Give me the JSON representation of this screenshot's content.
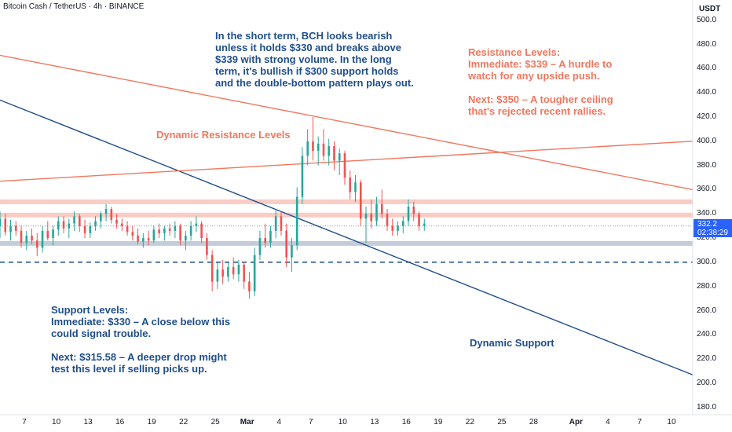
{
  "header": {
    "symbol_title": "Bitcoin Cash / TetherUS · 4h · BINANCE",
    "price_unit": "USDT"
  },
  "price_tag": {
    "price": "332.2",
    "countdown": "02:38:29"
  },
  "colors": {
    "bull": "#26a69a",
    "bear": "#ef5350",
    "resistance_band": "#f8c3bb",
    "support_band": "#b8c4d2",
    "support_line": "#1f4e8c",
    "resistance_line": "#f0785f",
    "annotation_blue": "#1f4e8c",
    "annotation_orange": "#f0785f"
  },
  "annotations": {
    "outlook": "In the short term, BCH looks bearish\nunless it holds $330 and breaks above\n$339 with strong volume. In the long\nterm, it's bullish if $300 support holds\nand the double-bottom pattern plays out.",
    "resistance": "Resistance Levels:\nImmediate: $339 – A hurdle to\nwatch for any upside push.\n\nNext: $350 – A tougher ceiling\nthat's rejected recent rallies.",
    "dynamic_resistance": "Dynamic Resistance Levels",
    "support": "Support Levels:\nImmediate: $330 – A close below this\ncould signal trouble.\n\nNext: $315.58 – A deeper drop might\ntest this level if selling picks up.",
    "dynamic_support": "Dynamic Support"
  },
  "chart_data": {
    "type": "candlestick",
    "title": "Bitcoin Cash / TetherUS · 4h · BINANCE",
    "xlabel": "",
    "ylabel": "",
    "unit": "USDT",
    "ylim": [
      175,
      520
    ],
    "y_ticks": [
      "180.0",
      "200.0",
      "220.0",
      "240.0",
      "260.0",
      "280.0",
      "300.0",
      "320.0",
      "340.0",
      "360.0",
      "380.0",
      "400.0",
      "420.0",
      "440.0",
      "460.0",
      "480.0",
      "500.0"
    ],
    "x_ticks": [
      "7",
      "10",
      "13",
      "16",
      "19",
      "22",
      "25",
      "Mar",
      "4",
      "7",
      "10",
      "13",
      "16",
      "19",
      "22",
      "25",
      "28",
      "Apr",
      "4",
      "7",
      "10"
    ],
    "x_tick_positions": [
      2.3,
      5.3,
      8.3,
      11.3,
      14.3,
      17.3,
      20.3,
      23.3,
      26.3,
      29.3,
      32.3,
      35.3,
      38.3,
      41.3,
      44.3,
      47.3,
      50.3,
      54.3,
      57.3,
      60.3,
      63.3
    ],
    "x_range": [
      0,
      65.3
    ],
    "last_price": 332.2,
    "horizontal_levels": [
      {
        "price": 350,
        "style": "band",
        "role": "resistance"
      },
      {
        "price": 339,
        "style": "band",
        "role": "resistance"
      },
      {
        "price": 330,
        "style": "dotted",
        "role": "current"
      },
      {
        "price": 315.58,
        "style": "band",
        "role": "support"
      },
      {
        "price": 300,
        "style": "dashed",
        "role": "support"
      }
    ],
    "trendlines": [
      {
        "role": "support",
        "points": [
          [
            0,
            434
          ],
          [
            65.3,
            207
          ]
        ]
      },
      {
        "role": "resistance",
        "points": [
          [
            0,
            471
          ],
          [
            65.3,
            360
          ]
        ]
      },
      {
        "role": "resistance",
        "points": [
          [
            0,
            367
          ],
          [
            65.3,
            400
          ]
        ]
      }
    ],
    "candles": [
      {
        "t": 0.0,
        "o": 330,
        "h": 342,
        "l": 320,
        "c": 336
      },
      {
        "t": 0.5,
        "o": 336,
        "h": 340,
        "l": 322,
        "c": 325
      },
      {
        "t": 1.0,
        "o": 325,
        "h": 335,
        "l": 318,
        "c": 330
      },
      {
        "t": 1.5,
        "o": 330,
        "h": 334,
        "l": 322,
        "c": 326
      },
      {
        "t": 2.0,
        "o": 326,
        "h": 330,
        "l": 312,
        "c": 316
      },
      {
        "t": 2.5,
        "o": 316,
        "h": 326,
        "l": 310,
        "c": 322
      },
      {
        "t": 3.0,
        "o": 322,
        "h": 328,
        "l": 315,
        "c": 318
      },
      {
        "t": 3.5,
        "o": 318,
        "h": 324,
        "l": 305,
        "c": 312
      },
      {
        "t": 4.0,
        "o": 312,
        "h": 330,
        "l": 308,
        "c": 326
      },
      {
        "t": 4.5,
        "o": 326,
        "h": 334,
        "l": 318,
        "c": 320
      },
      {
        "t": 5.0,
        "o": 320,
        "h": 330,
        "l": 314,
        "c": 327
      },
      {
        "t": 5.5,
        "o": 327,
        "h": 338,
        "l": 322,
        "c": 334
      },
      {
        "t": 6.0,
        "o": 334,
        "h": 338,
        "l": 324,
        "c": 328
      },
      {
        "t": 6.5,
        "o": 328,
        "h": 336,
        "l": 320,
        "c": 332
      },
      {
        "t": 7.0,
        "o": 332,
        "h": 342,
        "l": 326,
        "c": 338
      },
      {
        "t": 7.5,
        "o": 338,
        "h": 340,
        "l": 325,
        "c": 330
      },
      {
        "t": 8.0,
        "o": 330,
        "h": 335,
        "l": 320,
        "c": 324
      },
      {
        "t": 8.5,
        "o": 324,
        "h": 333,
        "l": 320,
        "c": 330
      },
      {
        "t": 9.0,
        "o": 330,
        "h": 338,
        "l": 326,
        "c": 334
      },
      {
        "t": 9.5,
        "o": 334,
        "h": 342,
        "l": 328,
        "c": 340
      },
      {
        "t": 10.0,
        "o": 340,
        "h": 348,
        "l": 334,
        "c": 344
      },
      {
        "t": 10.5,
        "o": 344,
        "h": 346,
        "l": 332,
        "c": 335
      },
      {
        "t": 11.0,
        "o": 335,
        "h": 340,
        "l": 328,
        "c": 332
      },
      {
        "t": 11.5,
        "o": 332,
        "h": 336,
        "l": 326,
        "c": 330
      },
      {
        "t": 12.0,
        "o": 330,
        "h": 334,
        "l": 322,
        "c": 325
      },
      {
        "t": 12.5,
        "o": 325,
        "h": 330,
        "l": 318,
        "c": 322
      },
      {
        "t": 13.0,
        "o": 322,
        "h": 328,
        "l": 315,
        "c": 317
      },
      {
        "t": 13.5,
        "o": 317,
        "h": 324,
        "l": 312,
        "c": 320
      },
      {
        "t": 14.0,
        "o": 320,
        "h": 326,
        "l": 314,
        "c": 318
      },
      {
        "t": 14.5,
        "o": 318,
        "h": 330,
        "l": 316,
        "c": 327
      },
      {
        "t": 15.0,
        "o": 327,
        "h": 332,
        "l": 320,
        "c": 324
      },
      {
        "t": 15.5,
        "o": 324,
        "h": 330,
        "l": 318,
        "c": 328
      },
      {
        "t": 16.0,
        "o": 328,
        "h": 332,
        "l": 322,
        "c": 326
      },
      {
        "t": 16.5,
        "o": 326,
        "h": 334,
        "l": 320,
        "c": 330
      },
      {
        "t": 17.0,
        "o": 330,
        "h": 332,
        "l": 314,
        "c": 318
      },
      {
        "t": 17.5,
        "o": 318,
        "h": 326,
        "l": 310,
        "c": 322
      },
      {
        "t": 18.0,
        "o": 322,
        "h": 334,
        "l": 318,
        "c": 330
      },
      {
        "t": 18.5,
        "o": 330,
        "h": 338,
        "l": 325,
        "c": 332
      },
      {
        "t": 19.0,
        "o": 332,
        "h": 334,
        "l": 316,
        "c": 320
      },
      {
        "t": 19.5,
        "o": 320,
        "h": 324,
        "l": 302,
        "c": 306
      },
      {
        "t": 20.0,
        "o": 306,
        "h": 310,
        "l": 276,
        "c": 284
      },
      {
        "t": 20.5,
        "o": 284,
        "h": 300,
        "l": 278,
        "c": 294
      },
      {
        "t": 21.0,
        "o": 294,
        "h": 302,
        "l": 282,
        "c": 288
      },
      {
        "t": 21.5,
        "o": 288,
        "h": 300,
        "l": 284,
        "c": 296
      },
      {
        "t": 22.0,
        "o": 296,
        "h": 304,
        "l": 286,
        "c": 290
      },
      {
        "t": 22.5,
        "o": 290,
        "h": 302,
        "l": 284,
        "c": 298
      },
      {
        "t": 23.0,
        "o": 298,
        "h": 300,
        "l": 278,
        "c": 284
      },
      {
        "t": 23.5,
        "o": 284,
        "h": 292,
        "l": 270,
        "c": 276
      },
      {
        "t": 24.0,
        "o": 276,
        "h": 312,
        "l": 272,
        "c": 306
      },
      {
        "t": 24.5,
        "o": 306,
        "h": 326,
        "l": 302,
        "c": 320
      },
      {
        "t": 25.0,
        "o": 320,
        "h": 332,
        "l": 312,
        "c": 316
      },
      {
        "t": 25.5,
        "o": 316,
        "h": 330,
        "l": 312,
        "c": 326
      },
      {
        "t": 26.0,
        "o": 326,
        "h": 344,
        "l": 320,
        "c": 338
      },
      {
        "t": 26.5,
        "o": 338,
        "h": 342,
        "l": 322,
        "c": 326
      },
      {
        "t": 27.0,
        "o": 326,
        "h": 332,
        "l": 296,
        "c": 304
      },
      {
        "t": 27.5,
        "o": 304,
        "h": 320,
        "l": 292,
        "c": 314
      },
      {
        "t": 28.0,
        "o": 314,
        "h": 362,
        "l": 310,
        "c": 354
      },
      {
        "t": 28.5,
        "o": 354,
        "h": 395,
        "l": 348,
        "c": 388
      },
      {
        "t": 29.0,
        "o": 388,
        "h": 410,
        "l": 380,
        "c": 400
      },
      {
        "t": 29.5,
        "o": 400,
        "h": 420,
        "l": 384,
        "c": 392
      },
      {
        "t": 30.0,
        "o": 392,
        "h": 404,
        "l": 380,
        "c": 398
      },
      {
        "t": 30.5,
        "o": 398,
        "h": 410,
        "l": 384,
        "c": 388
      },
      {
        "t": 31.0,
        "o": 388,
        "h": 402,
        "l": 380,
        "c": 396
      },
      {
        "t": 31.5,
        "o": 396,
        "h": 400,
        "l": 376,
        "c": 384
      },
      {
        "t": 32.0,
        "o": 384,
        "h": 394,
        "l": 372,
        "c": 390
      },
      {
        "t": 32.5,
        "o": 390,
        "h": 392,
        "l": 364,
        "c": 370
      },
      {
        "t": 33.0,
        "o": 370,
        "h": 376,
        "l": 352,
        "c": 358
      },
      {
        "t": 33.5,
        "o": 358,
        "h": 372,
        "l": 350,
        "c": 366
      },
      {
        "t": 34.0,
        "o": 366,
        "h": 368,
        "l": 330,
        "c": 336
      },
      {
        "t": 34.5,
        "o": 336,
        "h": 346,
        "l": 316,
        "c": 340
      },
      {
        "t": 35.0,
        "o": 340,
        "h": 352,
        "l": 328,
        "c": 334
      },
      {
        "t": 35.5,
        "o": 334,
        "h": 354,
        "l": 330,
        "c": 348
      },
      {
        "t": 36.0,
        "o": 348,
        "h": 360,
        "l": 336,
        "c": 340
      },
      {
        "t": 36.5,
        "o": 340,
        "h": 344,
        "l": 326,
        "c": 330
      },
      {
        "t": 37.0,
        "o": 330,
        "h": 336,
        "l": 322,
        "c": 326
      },
      {
        "t": 37.5,
        "o": 326,
        "h": 334,
        "l": 322,
        "c": 330
      },
      {
        "t": 38.0,
        "o": 330,
        "h": 338,
        "l": 324,
        "c": 334
      },
      {
        "t": 38.5,
        "o": 334,
        "h": 352,
        "l": 330,
        "c": 346
      },
      {
        "t": 39.0,
        "o": 346,
        "h": 350,
        "l": 334,
        "c": 340
      },
      {
        "t": 39.5,
        "o": 340,
        "h": 342,
        "l": 326,
        "c": 330
      },
      {
        "t": 40.0,
        "o": 330,
        "h": 336,
        "l": 326,
        "c": 332
      }
    ]
  }
}
